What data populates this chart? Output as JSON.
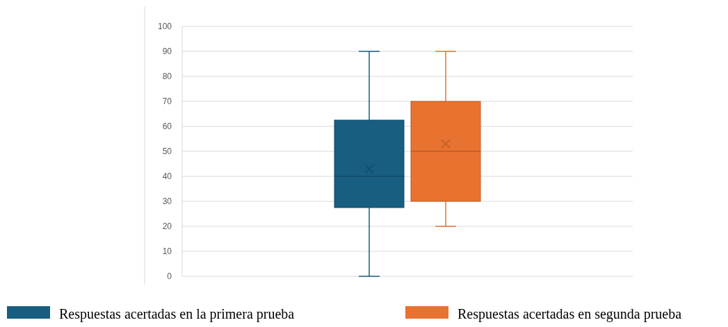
{
  "chart_data": {
    "type": "box",
    "categories": [
      null
    ],
    "ylim": [
      0,
      100
    ],
    "yticks": [
      0,
      10,
      20,
      30,
      40,
      50,
      60,
      70,
      80,
      90,
      100
    ],
    "grid": "y",
    "legend": "bottom",
    "marker": "cross",
    "series": [
      {
        "name": "Respuestas acertadas en la primera prueba",
        "color": "#175e80",
        "boxes": [
          {
            "low": 0,
            "q1": 27.5,
            "median": 40,
            "q3": 62.5,
            "high": 90,
            "mean": 43
          }
        ]
      },
      {
        "name": "Respuestas acertadas en segunda prueba",
        "color": "#e87230",
        "boxes": [
          {
            "low": 20,
            "q1": 30,
            "median": 50,
            "q3": 70,
            "high": 90,
            "mean": 53
          }
        ]
      }
    ]
  }
}
